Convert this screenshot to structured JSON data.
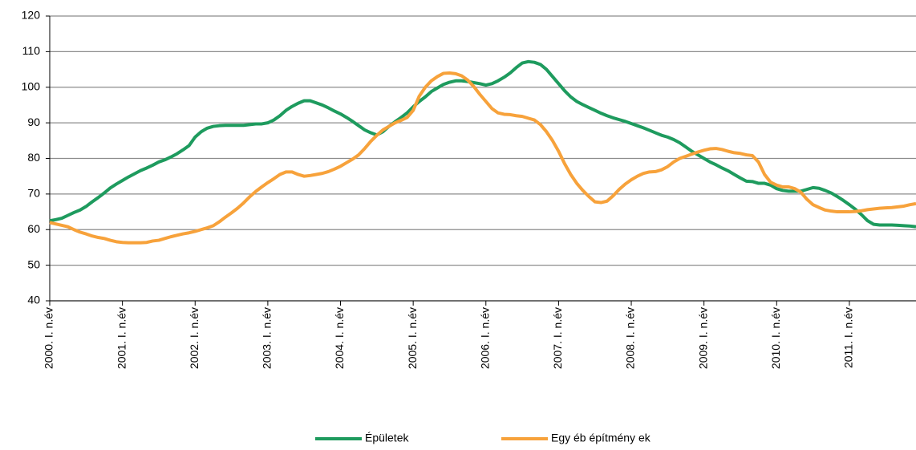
{
  "chart_data": {
    "type": "line",
    "categories": [
      "2000. I. n.év",
      null,
      null,
      null,
      null,
      null,
      null,
      null,
      null,
      null,
      null,
      null,
      "2001. I. n.év",
      null,
      null,
      null,
      null,
      null,
      null,
      null,
      null,
      null,
      null,
      null,
      "2002. I. n.év",
      null,
      null,
      null,
      null,
      null,
      null,
      null,
      null,
      null,
      null,
      null,
      "2003. I. n.év",
      null,
      null,
      null,
      null,
      null,
      null,
      null,
      null,
      null,
      null,
      null,
      "2004. I. n.év",
      null,
      null,
      null,
      null,
      null,
      null,
      null,
      null,
      null,
      null,
      null,
      "2005. I. n.év",
      null,
      null,
      null,
      null,
      null,
      null,
      null,
      null,
      null,
      null,
      null,
      "2006. I. n.év",
      null,
      null,
      null,
      null,
      null,
      null,
      null,
      null,
      null,
      null,
      null,
      "2007. I. n.év",
      null,
      null,
      null,
      null,
      null,
      null,
      null,
      null,
      null,
      null,
      null,
      "2008. I. n.év",
      null,
      null,
      null,
      null,
      null,
      null,
      null,
      null,
      null,
      null,
      null,
      "2009. I. n.év",
      null,
      null,
      null,
      null,
      null,
      null,
      null,
      null,
      null,
      null,
      null,
      "2010. I. n.év",
      null,
      null,
      null,
      null,
      null,
      null,
      null,
      null,
      null,
      null,
      null,
      "2011. I. n.év",
      null,
      null,
      null,
      null,
      null,
      null,
      null,
      null,
      null,
      null,
      null
    ],
    "series": [
      {
        "name": "Épületek",
        "color": "#1e9b5e",
        "values": [
          62.5,
          62.8,
          63.2,
          64,
          64.8,
          65.5,
          66.5,
          67.8,
          69,
          70.3,
          71.7,
          72.8,
          73.8,
          74.8,
          75.7,
          76.6,
          77.3,
          78.1,
          79,
          79.6,
          80.4,
          81.3,
          82.4,
          83.6,
          86,
          87.5,
          88.5,
          89,
          89.2,
          89.3,
          89.3,
          89.3,
          89.3,
          89.5,
          89.7,
          89.7,
          90,
          90.8,
          92,
          93.5,
          94.6,
          95.5,
          96.2,
          96.2,
          95.6,
          95,
          94.2,
          93.3,
          92.5,
          91.5,
          90.4,
          89.2,
          88,
          87.2,
          86.6,
          87.5,
          89,
          90.3,
          91.5,
          92.8,
          94.5,
          96,
          97.3,
          98.8,
          99.8,
          100.8,
          101.4,
          101.8,
          101.8,
          101.6,
          101.3,
          101,
          100.6,
          101,
          101.8,
          102.8,
          104,
          105.5,
          106.8,
          107.2,
          107,
          106.4,
          105,
          103,
          101,
          99,
          97.3,
          96,
          95.1,
          94.3,
          93.5,
          92.7,
          92,
          91.4,
          90.9,
          90.4,
          89.8,
          89.2,
          88.6,
          87.9,
          87.2,
          86.5,
          86,
          85.3,
          84.4,
          83.2,
          82,
          81,
          80,
          79,
          78.2,
          77.3,
          76.5,
          75.5,
          74.5,
          73.6,
          73.5,
          73,
          73,
          72.5,
          71.5,
          71,
          70.8,
          70.8,
          70.8,
          71.3,
          71.8,
          71.6,
          71,
          70.3,
          69.3,
          68.2,
          67,
          65.7,
          64.2,
          62.5,
          61.5,
          61.3,
          61.3,
          61.3,
          61.2,
          61.1,
          61,
          60.8
        ]
      },
      {
        "name": "Egy éb építmény ek",
        "color": "#f7a23b",
        "values": [
          62,
          61.6,
          61.2,
          60.8,
          60,
          59.3,
          58.8,
          58.2,
          57.8,
          57.5,
          57,
          56.6,
          56.4,
          56.3,
          56.3,
          56.3,
          56.4,
          56.8,
          57,
          57.5,
          58,
          58.4,
          58.8,
          59.1,
          59.5,
          60,
          60.5,
          61.1,
          62.2,
          63.5,
          64.7,
          66,
          67.5,
          69.2,
          70.7,
          72,
          73.2,
          74.3,
          75.5,
          76.2,
          76.2,
          75.5,
          75,
          75.2,
          75.5,
          75.8,
          76.3,
          77,
          77.8,
          78.8,
          79.8,
          81,
          82.8,
          84.8,
          86.5,
          88,
          89,
          90,
          90.7,
          91.5,
          93.5,
          97.5,
          100,
          101.8,
          103,
          103.9,
          104,
          103.8,
          103.2,
          102,
          100.2,
          98,
          96,
          94,
          92.8,
          92.4,
          92.3,
          92,
          91.8,
          91.3,
          90.8,
          89.5,
          87.5,
          85,
          82,
          78.5,
          75.5,
          73,
          71,
          69.3,
          67.8,
          67.6,
          68,
          69.5,
          71.3,
          72.8,
          74,
          75,
          75.8,
          76.2,
          76.3,
          76.8,
          77.7,
          79,
          80,
          80.6,
          81.2,
          81.8,
          82.3,
          82.7,
          82.8,
          82.5,
          82,
          81.6,
          81.4,
          81,
          80.8,
          79,
          75.5,
          73.3,
          72.5,
          72,
          72,
          71.5,
          70.5,
          68.5,
          67,
          66.2,
          65.5,
          65.2,
          65,
          65,
          65,
          65.1,
          65.3,
          65.6,
          65.8,
          66,
          66.1,
          66.2,
          66.4,
          66.6,
          67,
          67.3
        ]
      }
    ],
    "ylim": [
      40,
      120
    ],
    "yticks": [
      40,
      50,
      60,
      70,
      80,
      90,
      100,
      110,
      120
    ],
    "grid": true,
    "legend": "bottom"
  }
}
